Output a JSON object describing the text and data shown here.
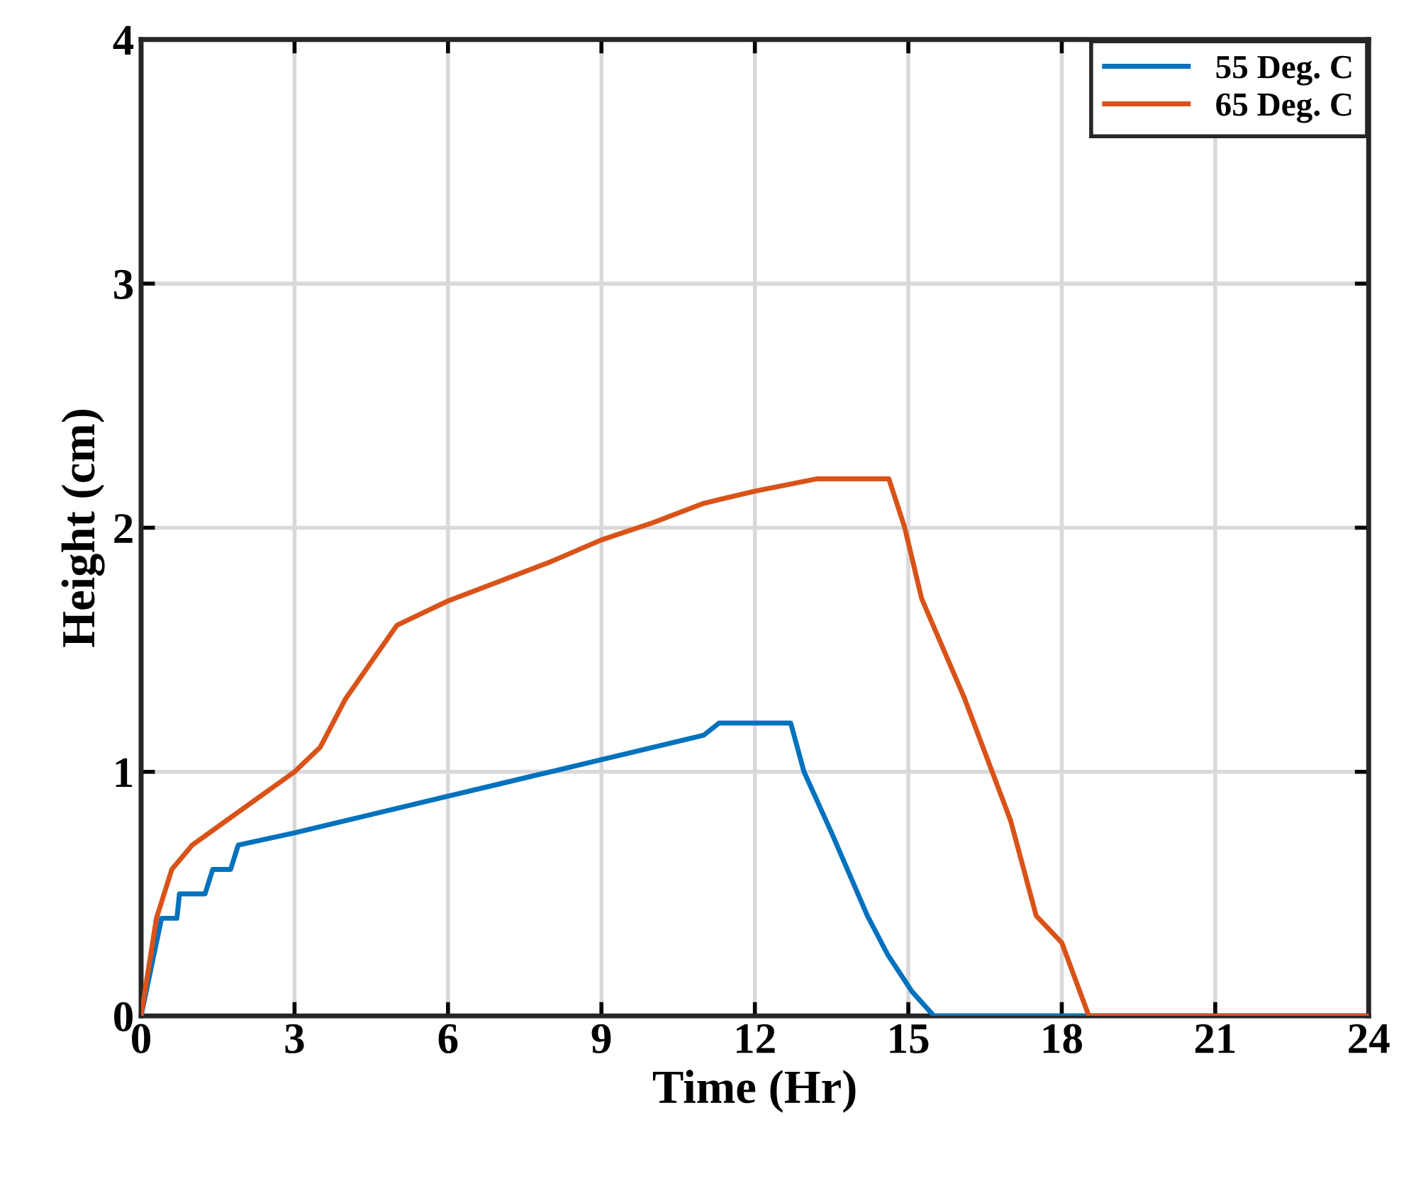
{
  "chart_data": {
    "type": "line",
    "xlabel": "Time (Hr)",
    "ylabel": "Height (cm)",
    "xlim": [
      0,
      24
    ],
    "xticks": [
      0,
      3,
      6,
      9,
      12,
      15,
      18,
      21,
      24
    ],
    "ylim": [
      0,
      4
    ],
    "yticks": [
      0,
      1,
      2,
      3,
      4
    ],
    "grid": true,
    "legend": "top right",
    "line_style": "solid",
    "series": [
      {
        "name": "55 Deg. C",
        "color": "#0072bd",
        "x": [
          0,
          0.4,
          0.7,
          0.75,
          1.25,
          1.4,
          1.75,
          1.9,
          3,
          4,
          5,
          6,
          7,
          8,
          9,
          10,
          11,
          11.3,
          12.7,
          12.96,
          13.5,
          14.2,
          14.6,
          15.07,
          15.5,
          24
        ],
        "values": [
          0,
          0.4,
          0.4,
          0.5,
          0.5,
          0.6,
          0.6,
          0.7,
          0.75,
          0.8,
          0.85,
          0.9,
          0.95,
          1.0,
          1.05,
          1.1,
          1.15,
          1.2,
          1.2,
          1.0,
          0.75,
          0.41,
          0.25,
          0.1,
          0,
          0
        ]
      },
      {
        "name": "65 Deg. C",
        "color": "#d95319",
        "x": [
          0,
          0.3,
          0.6,
          1,
          2,
          3,
          3.5,
          4,
          4.5,
          5,
          5.5,
          6,
          7,
          8,
          9,
          10,
          11,
          12,
          13.2,
          14.62,
          14.93,
          15.26,
          16.1,
          17.0,
          17.5,
          18.0,
          18.53,
          24
        ],
        "values": [
          0,
          0.4,
          0.6,
          0.7,
          0.85,
          1.0,
          1.1,
          1.3,
          1.45,
          1.6,
          1.65,
          1.7,
          1.78,
          1.86,
          1.95,
          2.02,
          2.1,
          2.15,
          2.2,
          2.2,
          2.0,
          1.71,
          1.3,
          0.8,
          0.41,
          0.3,
          0,
          0
        ]
      }
    ]
  }
}
